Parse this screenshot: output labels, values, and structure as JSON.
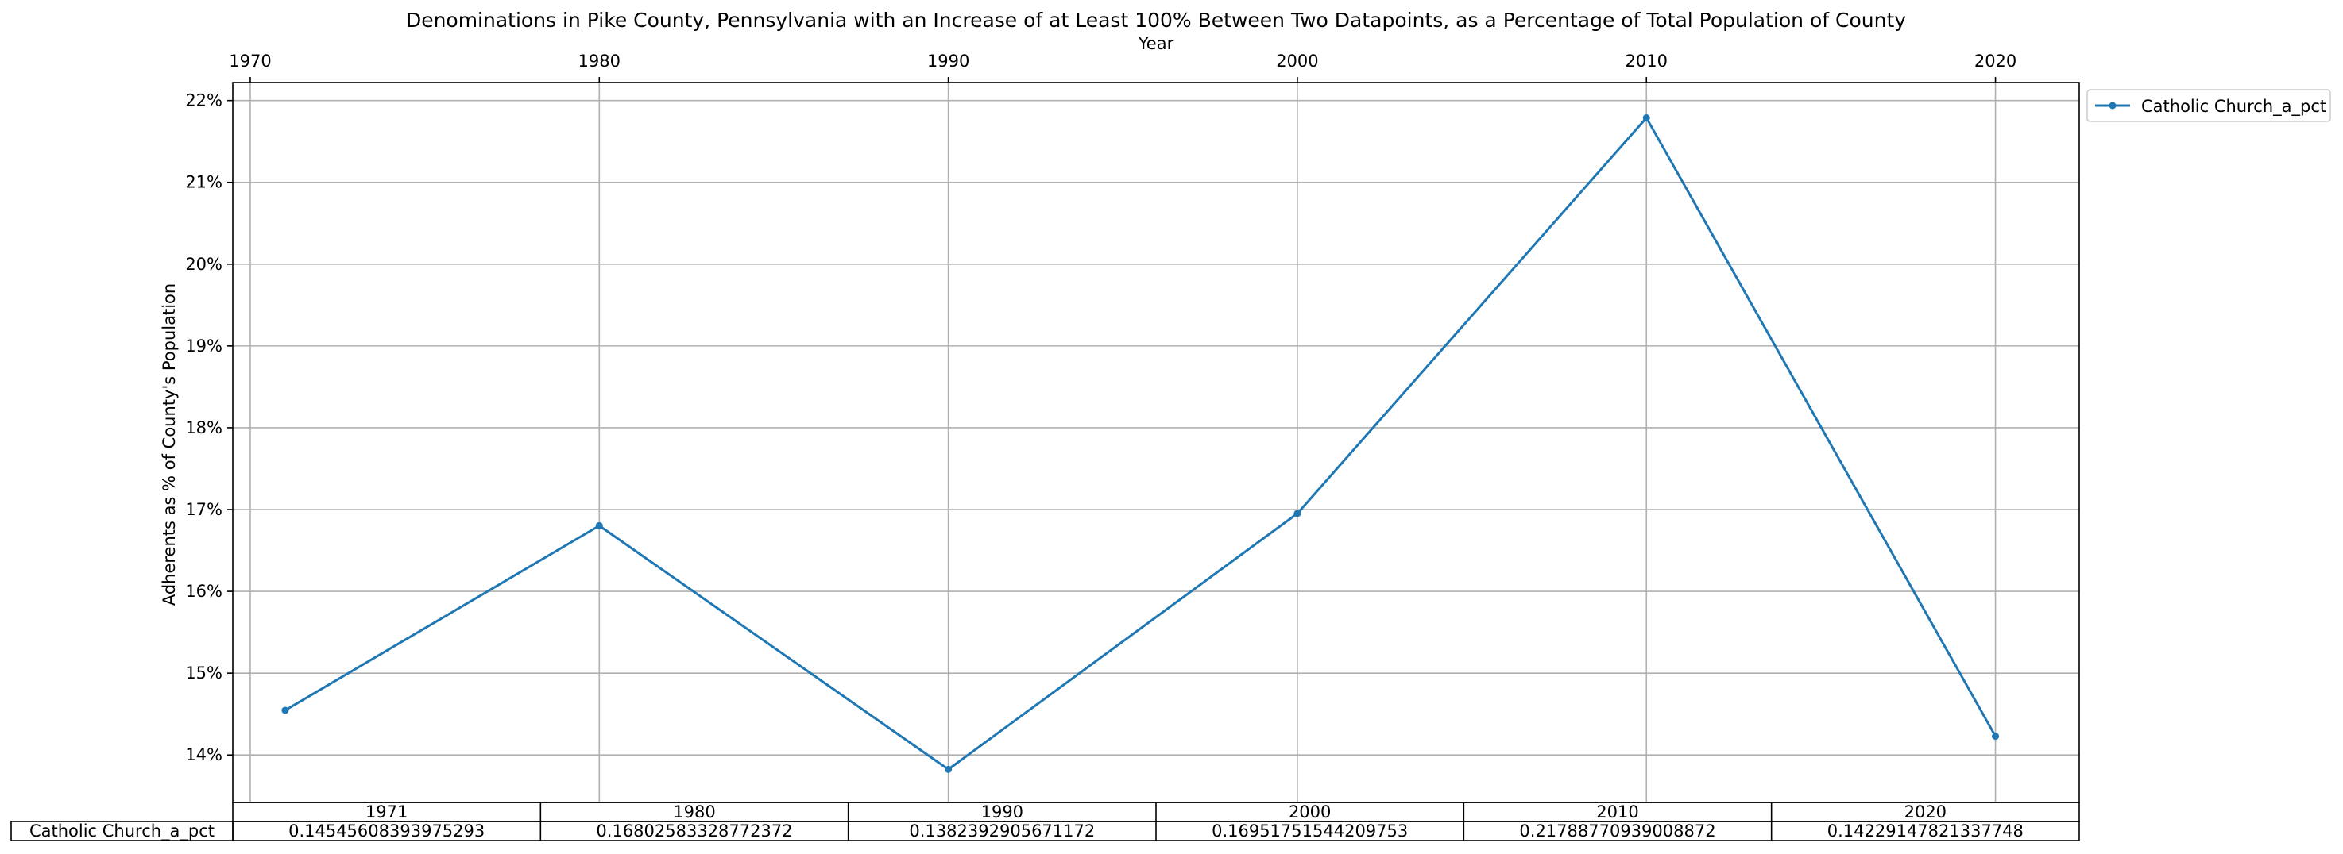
{
  "chart_data": {
    "type": "line",
    "title": "Denominations in Pike County, Pennsylvania with an Increase of at Least 100% Between Two Datapoints, as a Percentage of Total Population of County",
    "xlabel": "Year",
    "ylabel": "Adherents as % of County's Population",
    "x": [
      1971,
      1980,
      1990,
      2000,
      2010,
      2020
    ],
    "xticks": [
      1970,
      1980,
      1990,
      2000,
      2010,
      2020
    ],
    "xlim": [
      1969.5,
      2022.4
    ],
    "ylim": [
      0.1342,
      0.2222
    ],
    "yticks": [
      0.14,
      0.15,
      0.16,
      0.17,
      0.18,
      0.19,
      0.2,
      0.21,
      0.22
    ],
    "ytick_labels": [
      "14%",
      "15%",
      "16%",
      "17%",
      "18%",
      "19%",
      "20%",
      "21%",
      "22%"
    ],
    "grid": true,
    "legend_position": "outside upper right",
    "series": [
      {
        "name": "Catholic Church_a_pct",
        "color": "#1f77b4",
        "marker": "circle",
        "values": [
          0.14545608393975293,
          0.16802583328772372,
          0.1382392905671172,
          0.16951751544209753,
          0.21788770939008872,
          0.14229147821337748
        ]
      }
    ],
    "table": {
      "col_labels": [
        "1971",
        "1980",
        "1990",
        "2000",
        "2010",
        "2020"
      ],
      "row_label": "Catholic Church_a_pct",
      "cells": [
        "0.14545608393975293",
        "0.16802583328772372",
        "0.1382392905671172",
        "0.16951751544209753",
        "0.21788770939008872",
        "0.14229147821337748"
      ]
    }
  }
}
